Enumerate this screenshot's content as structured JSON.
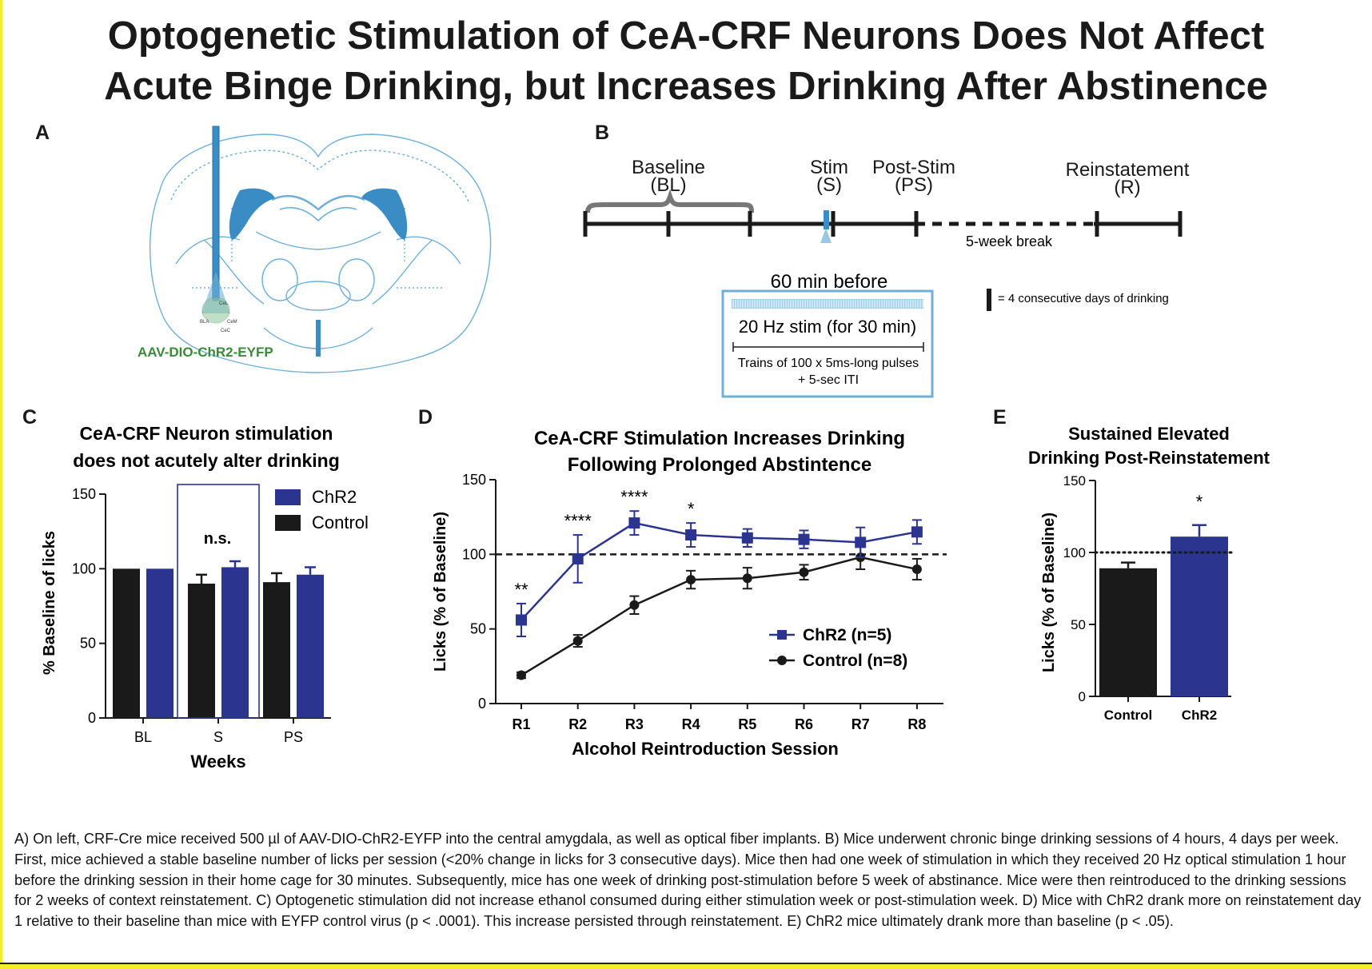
{
  "title": {
    "line1": "Optogenetic Stimulation of CeA-CRF Neurons Does Not Affect",
    "line2": "Acute Binge Drinking, but Increases Drinking After Abstinence"
  },
  "colors": {
    "chr2": "#2b3590",
    "control": "#1a1a1a",
    "brain_outline": "#6fb0d8",
    "brain_fill": "#3a8cc4",
    "virus_label": "#3a8a3a",
    "stim_box_border": "#6fb0d8"
  },
  "panel_a": {
    "letter": "A",
    "virus_label": "AAV-DIO-ChR2-EYFP",
    "region_labels": [
      "CeL",
      "BLA",
      "CeM",
      "CeC"
    ]
  },
  "panel_b": {
    "letter": "B",
    "phases": [
      {
        "line1": "Baseline",
        "line2": "(BL)"
      },
      {
        "line1": "Stim",
        "line2": "(S)"
      },
      {
        "line1": "Post-Stim",
        "line2": "(PS)"
      },
      {
        "line1": "Reinstatement",
        "line2": "(R)"
      }
    ],
    "break_label": "5-week break",
    "legend_text": "=  4 consecutive days of drinking",
    "stim_box": {
      "header": "60 min before",
      "stim_text": "20 Hz stim (for 30 min)",
      "trains_line1": "Trains of 100 x 5ms-long pulses",
      "trains_line2": "+ 5-sec ITI"
    }
  },
  "chart_data": [
    {
      "panel": "C",
      "type": "bar",
      "title_line1": "CeA-CRF Neuron stimulation",
      "title_line2": "does not acutely alter drinking",
      "xlabel": "Weeks",
      "ylabel": "% Baseline of licks",
      "ylim": [
        0,
        150
      ],
      "yticks": [
        0,
        50,
        100,
        150
      ],
      "categories": [
        "BL",
        "S",
        "PS"
      ],
      "series": [
        {
          "name": "Control",
          "color": "#1a1a1a",
          "values": [
            100,
            90,
            91
          ],
          "errors": [
            0,
            6,
            6
          ]
        },
        {
          "name": "ChR2",
          "color": "#2b3590",
          "values": [
            100,
            101,
            96
          ],
          "errors": [
            0,
            4,
            5
          ]
        }
      ],
      "legend_order": [
        "ChR2",
        "Control"
      ],
      "legend_position": "top-right",
      "annotation": "n.s."
    },
    {
      "panel": "D",
      "type": "line",
      "title_line1": "CeA-CRF Stimulation Increases Drinking",
      "title_line2": "Following Prolonged Abstintence",
      "xlabel": "Alcohol Reintroduction Session",
      "ylabel": "Licks (% of  Baseline)",
      "ylim": [
        0,
        150
      ],
      "yticks": [
        0,
        50,
        100,
        150
      ],
      "x": [
        "R1",
        "R2",
        "R3",
        "R4",
        "R5",
        "R6",
        "R7",
        "R8"
      ],
      "series": [
        {
          "name": "ChR2 (n=5)",
          "color": "#2b3590",
          "marker": "square",
          "values": [
            56,
            97,
            121,
            113,
            111,
            110,
            108,
            115
          ],
          "errors": [
            11,
            16,
            8,
            8,
            6,
            6,
            10,
            8
          ]
        },
        {
          "name": "Control (n=8)",
          "color": "#1a1a1a",
          "marker": "circle",
          "values": [
            19,
            42,
            66,
            83,
            84,
            88,
            98,
            90
          ],
          "errors": [
            2,
            4,
            6,
            6,
            7,
            5,
            8,
            7
          ]
        }
      ],
      "reference_line": 100,
      "significance": [
        "**",
        "****",
        "****",
        "*",
        "",
        "",
        "",
        ""
      ],
      "legend_position": "bottom-right"
    },
    {
      "panel": "E",
      "type": "bar",
      "title_line1": "Sustained Elevated",
      "title_line2": "Drinking Post-Reinstatement",
      "ylabel": "Licks (% of  Baseline)",
      "ylim": [
        0,
        150
      ],
      "yticks": [
        0,
        50,
        100,
        150
      ],
      "categories": [
        "Control",
        "ChR2"
      ],
      "values": [
        89,
        111
      ],
      "errors": [
        4,
        8
      ],
      "colors": [
        "#1a1a1a",
        "#2b3590"
      ],
      "reference_line": 100,
      "significance": [
        "",
        "*"
      ]
    }
  ],
  "caption": "A) On left, CRF-Cre mice received 500 µl of AAV-DIO-ChR2-EYFP into the central amygdala, as well as optical fiber implants. B) Mice underwent chronic binge drinking sessions of 4 hours, 4 days per week. First, mice achieved a stable baseline number of licks per session (<20% change in licks for 3 consecutive days). Mice then had one week of stimulation in which they received 20 Hz optical stimulation 1 hour before the drinking session in their home cage for 30 minutes. Subsequently, mice has one week of drinking post-stimulation before 5 week of abstinance. Mice were then reintroduced to the drinking sessions for 2 weeks of context reinstatement.    C) Optogenetic stimulation did not increase ethanol consumed during either stimulation week or post-stimulation week. D) Mice with ChR2 drank more on reinstatement day 1 relative to their baseline than mice with EYFP control virus (p < .0001). This increase persisted through reinstatement. E) ChR2 mice ultimately drank more than  baseline (p < .05)."
}
